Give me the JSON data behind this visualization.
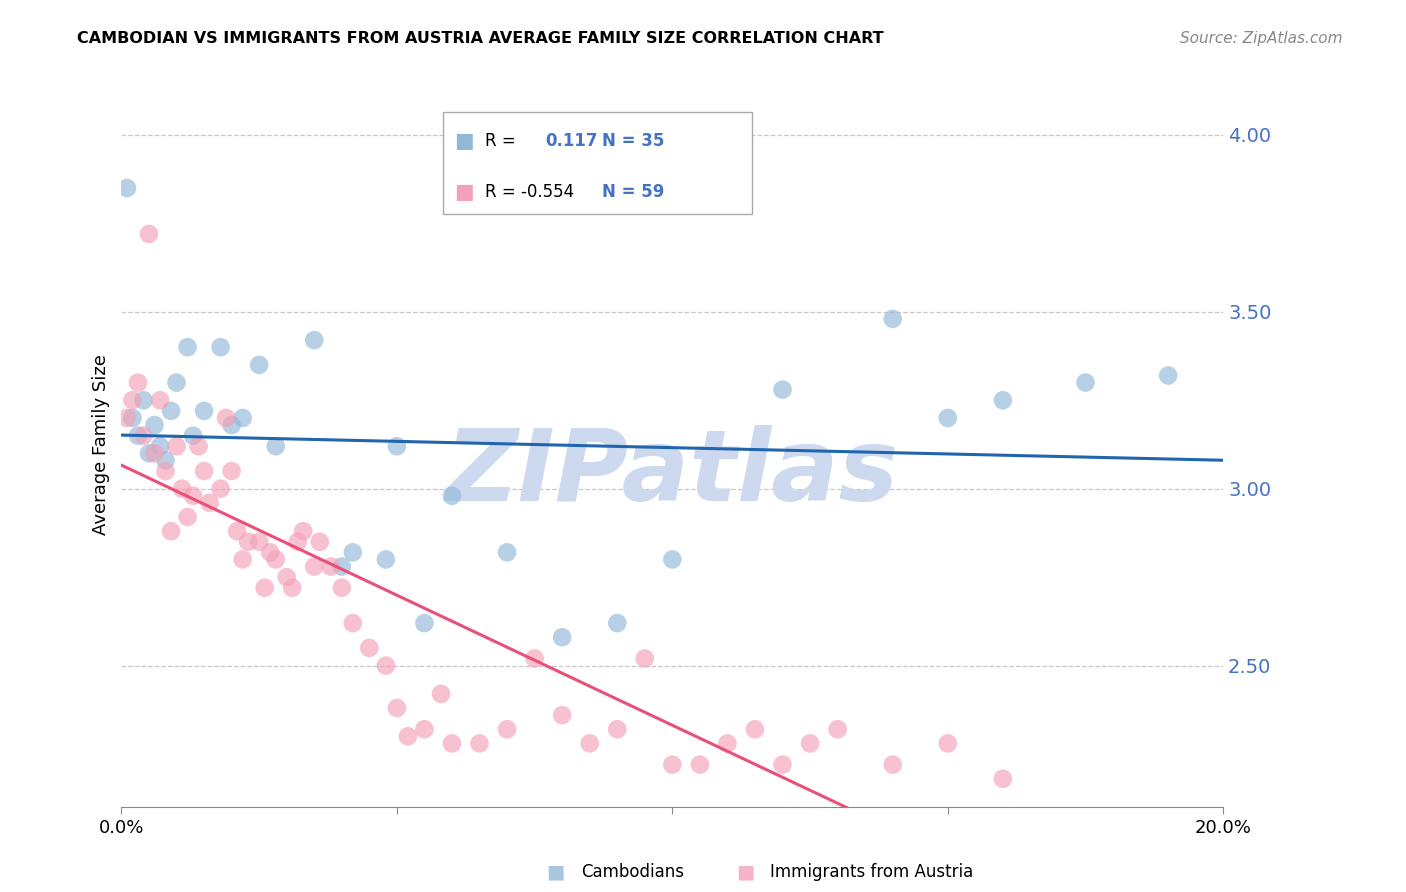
{
  "title": "CAMBODIAN VS IMMIGRANTS FROM AUSTRIA AVERAGE FAMILY SIZE CORRELATION CHART",
  "source": "Source: ZipAtlas.com",
  "ylabel": "Average Family Size",
  "xlim": [
    0.0,
    0.2
  ],
  "ylim": [
    2.1,
    4.15
  ],
  "yticks": [
    2.5,
    3.0,
    3.5,
    4.0
  ],
  "xticks": [
    0.0,
    0.05,
    0.1,
    0.15,
    0.2
  ],
  "xticklabels": [
    "0.0%",
    "",
    "",
    "",
    "20.0%"
  ],
  "right_ytick_color": "#4472c4",
  "grid_color": "#c8c8c8",
  "watermark": "ZIPatlas",
  "watermark_color": "#ccd9ee",
  "series1_label": "Cambodians",
  "series2_label": "Immigrants from Austria",
  "blue_color": "#92b8d8",
  "pink_color": "#f4a0b8",
  "blue_line_color": "#2166ac",
  "pink_line_color": "#e8507a",
  "cambodian_x": [
    0.001,
    0.002,
    0.003,
    0.004,
    0.005,
    0.006,
    0.007,
    0.008,
    0.009,
    0.01,
    0.012,
    0.013,
    0.015,
    0.018,
    0.02,
    0.022,
    0.025,
    0.028,
    0.035,
    0.04,
    0.042,
    0.048,
    0.05,
    0.055,
    0.06,
    0.07,
    0.08,
    0.09,
    0.1,
    0.12,
    0.14,
    0.15,
    0.16,
    0.175,
    0.19
  ],
  "cambodian_y": [
    3.85,
    3.2,
    3.15,
    3.25,
    3.1,
    3.18,
    3.12,
    3.08,
    3.22,
    3.3,
    3.4,
    3.15,
    3.22,
    3.4,
    3.18,
    3.2,
    3.35,
    3.12,
    3.42,
    2.78,
    2.82,
    2.8,
    3.12,
    2.62,
    2.98,
    2.82,
    2.58,
    2.62,
    2.8,
    3.28,
    3.48,
    3.2,
    3.25,
    3.3,
    3.32
  ],
  "austria_x": [
    0.001,
    0.002,
    0.003,
    0.004,
    0.005,
    0.006,
    0.007,
    0.008,
    0.009,
    0.01,
    0.011,
    0.012,
    0.013,
    0.014,
    0.015,
    0.016,
    0.018,
    0.019,
    0.02,
    0.021,
    0.022,
    0.023,
    0.025,
    0.026,
    0.027,
    0.028,
    0.03,
    0.031,
    0.032,
    0.033,
    0.035,
    0.036,
    0.038,
    0.04,
    0.042,
    0.045,
    0.048,
    0.05,
    0.052,
    0.055,
    0.058,
    0.06,
    0.065,
    0.07,
    0.075,
    0.08,
    0.085,
    0.09,
    0.095,
    0.1,
    0.105,
    0.11,
    0.115,
    0.12,
    0.125,
    0.13,
    0.14,
    0.15,
    0.16
  ],
  "austria_y": [
    3.2,
    3.25,
    3.3,
    3.15,
    3.72,
    3.1,
    3.25,
    3.05,
    2.88,
    3.12,
    3.0,
    2.92,
    2.98,
    3.12,
    3.05,
    2.96,
    3.0,
    3.2,
    3.05,
    2.88,
    2.8,
    2.85,
    2.85,
    2.72,
    2.82,
    2.8,
    2.75,
    2.72,
    2.85,
    2.88,
    2.78,
    2.85,
    2.78,
    2.72,
    2.62,
    2.55,
    2.5,
    2.38,
    2.3,
    2.32,
    2.42,
    2.28,
    2.28,
    2.32,
    2.52,
    2.36,
    2.28,
    2.32,
    2.52,
    2.22,
    2.22,
    2.28,
    2.32,
    2.22,
    2.28,
    2.32,
    2.22,
    2.28,
    2.18
  ]
}
